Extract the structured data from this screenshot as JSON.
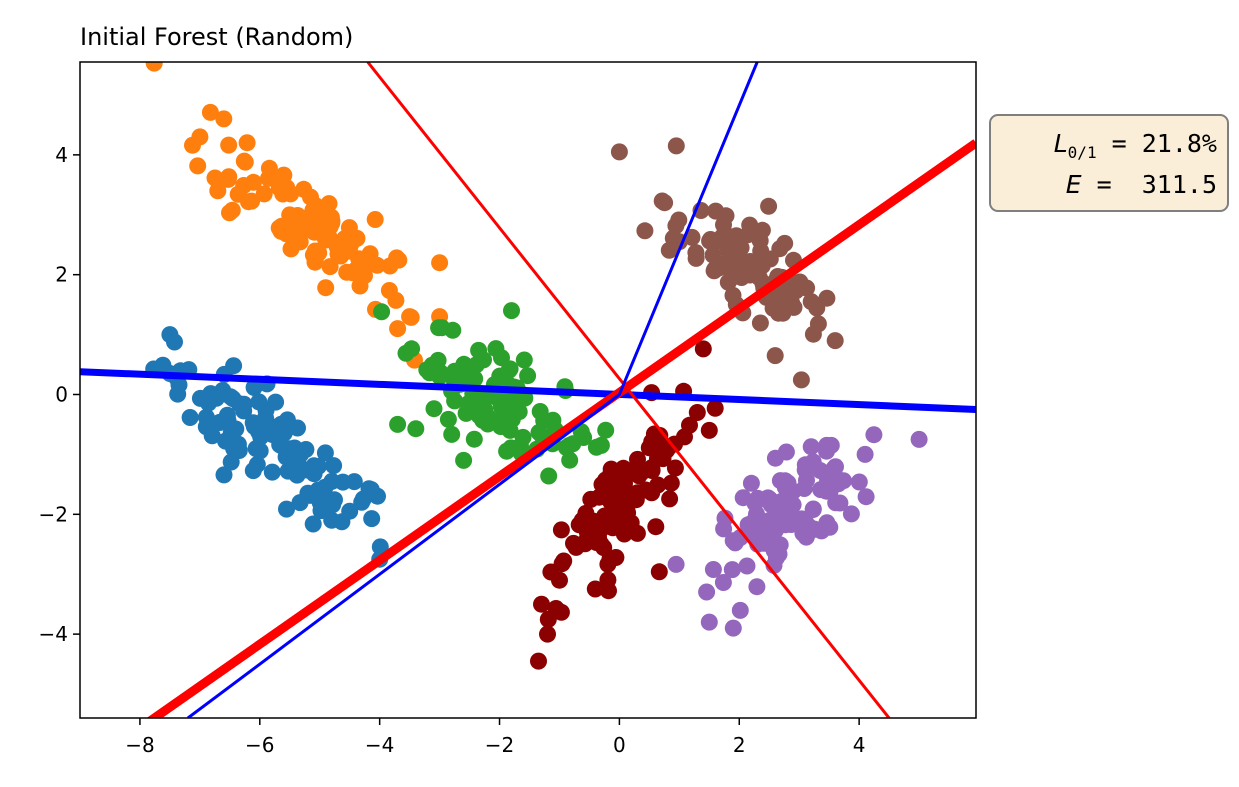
{
  "chart_data": {
    "type": "scatter",
    "title": "Initial Forest (Random)",
    "xlabel": "",
    "ylabel": "",
    "xlim": [
      -9,
      5.95
    ],
    "ylim": [
      -5.4,
      5.55
    ],
    "xticks": [
      -8,
      -6,
      -4,
      -2,
      0,
      2,
      4
    ],
    "xtick_labels": [
      "−8",
      "−6",
      "−4",
      "−2",
      "0",
      "2",
      "4"
    ],
    "yticks": [
      -4,
      -2,
      0,
      2,
      4
    ],
    "ytick_labels": [
      "−4",
      "−2",
      "0",
      "2",
      "4"
    ],
    "grid": false,
    "clusters": [
      {
        "color": "#1f77b4",
        "center": [
          -5.8,
          -0.9
        ],
        "count": 100,
        "spread_major": 1.15,
        "spread_minor": 0.32,
        "angle_deg": -38,
        "extra_points": [
          [
            -7.5,
            0.35
          ],
          [
            -7.5,
            1.0
          ],
          [
            -4.3,
            -1.8
          ],
          [
            -4.0,
            -2.75
          ],
          [
            -4.8,
            -2.1
          ]
        ]
      },
      {
        "color": "#ff7f0e",
        "center": [
          -5.2,
          2.9
        ],
        "count": 100,
        "spread_major": 1.05,
        "spread_minor": 0.32,
        "angle_deg": -40,
        "extra_points": [
          [
            -7.0,
            4.3
          ],
          [
            -6.6,
            4.6
          ],
          [
            -6.7,
            3.4
          ],
          [
            -3.0,
            2.2
          ],
          [
            -3.7,
            1.1
          ],
          [
            -3.0,
            1.3
          ],
          [
            -3.5,
            1.3
          ]
        ]
      },
      {
        "color": "#2ca02c",
        "center": [
          -2.0,
          -0.1
        ],
        "count": 100,
        "spread_major": 0.85,
        "spread_minor": 0.35,
        "angle_deg": -35,
        "extra_points": [
          [
            -1.8,
            1.4
          ],
          [
            -2.6,
            -1.1
          ],
          [
            -0.3,
            -0.85
          ],
          [
            -3.7,
            -0.5
          ],
          [
            -3.0,
            0.3
          ]
        ]
      },
      {
        "color": "#8c564b",
        "center": [
          2.1,
          2.1
        ],
        "count": 100,
        "spread_major": 0.85,
        "spread_minor": 0.32,
        "angle_deg": -40,
        "extra_points": [
          [
            0.0,
            4.05
          ],
          [
            0.95,
            4.15
          ],
          [
            3.6,
            0.9
          ],
          [
            2.6,
            0.65
          ],
          [
            1.0,
            2.55
          ],
          [
            3.2,
            1.55
          ]
        ]
      },
      {
        "color": "#9467bd",
        "center": [
          2.9,
          -1.9
        ],
        "count": 100,
        "spread_major": 0.75,
        "spread_minor": 0.35,
        "angle_deg": 35,
        "extra_points": [
          [
            5.0,
            -0.75
          ],
          [
            1.5,
            -3.8
          ],
          [
            1.9,
            -3.9
          ],
          [
            4.1,
            -1.0
          ]
        ]
      },
      {
        "color": "#8b0000",
        "center": [
          0.0,
          -1.9
        ],
        "count": 100,
        "spread_major": 0.95,
        "spread_minor": 0.28,
        "angle_deg": 58,
        "extra_points": [
          [
            -1.35,
            -4.45
          ],
          [
            -1.2,
            -4.0
          ],
          [
            -1.3,
            -3.5
          ],
          [
            1.5,
            -0.6
          ],
          [
            1.3,
            -0.3
          ],
          [
            -1.0,
            -3.1
          ]
        ]
      }
    ],
    "lines": [
      {
        "color": "#0000ff",
        "width": 7,
        "points": [
          [
            -9,
            0.38
          ],
          [
            5.95,
            -0.25
          ]
        ]
      },
      {
        "color": "#ff0000",
        "width": 9,
        "points": [
          [
            -9,
            -6.27
          ],
          [
            5.95,
            4.2
          ]
        ]
      },
      {
        "color": "#ff0000",
        "width": 3,
        "points": [
          [
            -4.2,
            5.55
          ],
          [
            4.5,
            -5.4
          ]
        ]
      },
      {
        "color": "#0000ff",
        "width": 3,
        "points": [
          [
            -7.2,
            -5.4
          ],
          [
            0,
            0
          ],
          [
            2.3,
            5.55
          ]
        ]
      }
    ]
  },
  "stats": {
    "loss_symbol": "L",
    "loss_subscript": "0/1",
    "loss_value": " = 21.8%",
    "energy_symbol": "E",
    "energy_value": " =  311.5"
  }
}
